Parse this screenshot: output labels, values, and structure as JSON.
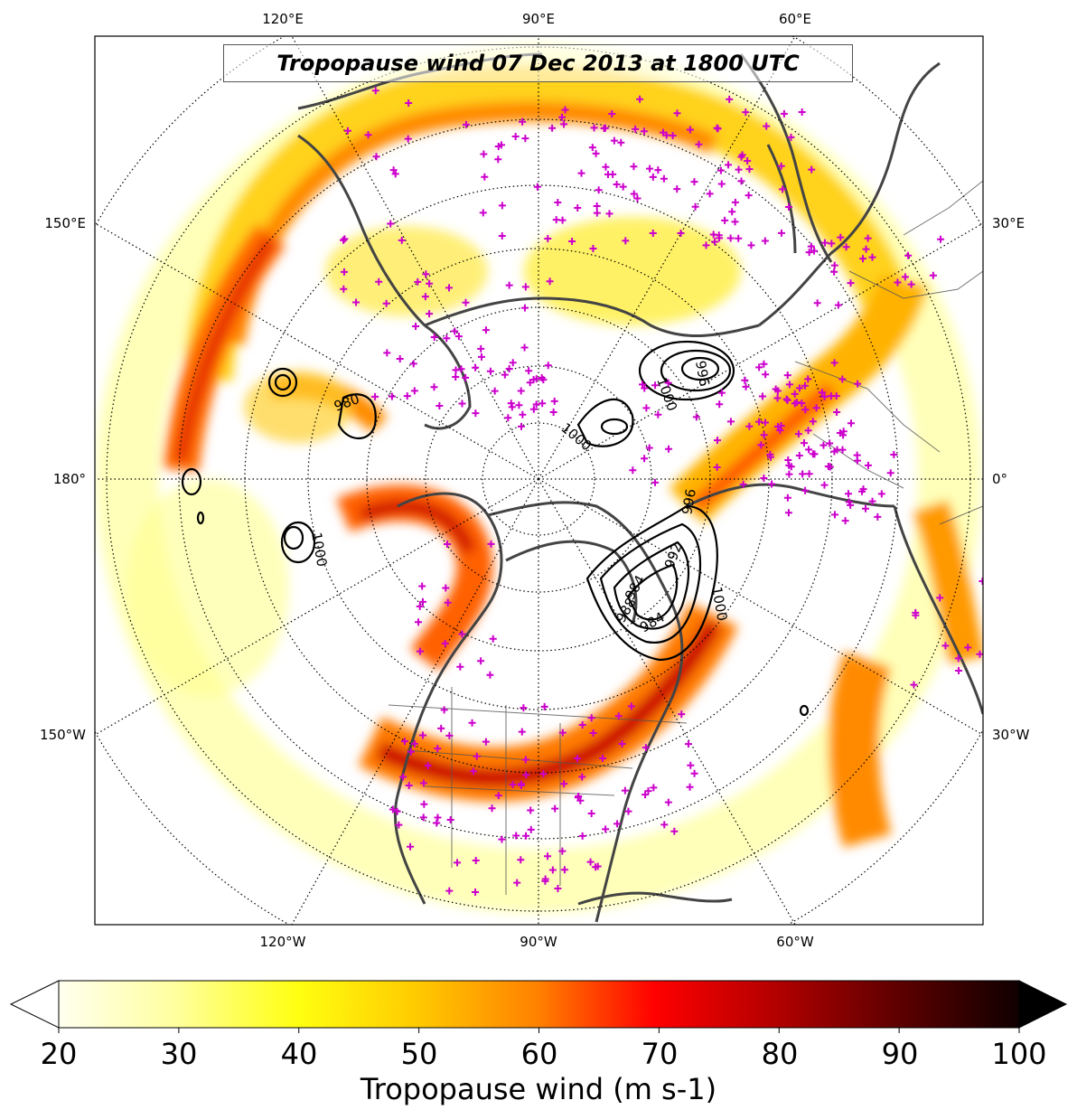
{
  "title": "Tropopause wind 07 Dec 2013 at 1800 UTC",
  "longitude_labels": {
    "top": [
      "120°E",
      "90°E",
      "60°E"
    ],
    "bottom": [
      "120°W",
      "90°W",
      "60°W"
    ],
    "left": [
      "150°E",
      "180°",
      "150°W"
    ],
    "right": [
      "30°E",
      "0°",
      "30°W"
    ]
  },
  "contour_labels": [
    "1000",
    "1000",
    "1000",
    "996",
    "988",
    "984",
    "996",
    "1000",
    "992",
    "984",
    "980"
  ],
  "colorbar": {
    "label": "Tropopause wind (m s-1)",
    "min": 20,
    "max": 100,
    "ticks": [
      "20",
      "30",
      "40",
      "50",
      "60",
      "70",
      "80",
      "90",
      "100"
    ],
    "colormap": "hot_r",
    "extend": "both"
  },
  "colors": {
    "coast": "#444444",
    "station_marker": "#cc00cc",
    "jet_light": "#ffff66",
    "jet_mid": "#ff9900",
    "jet_core": "#cc0000"
  }
}
